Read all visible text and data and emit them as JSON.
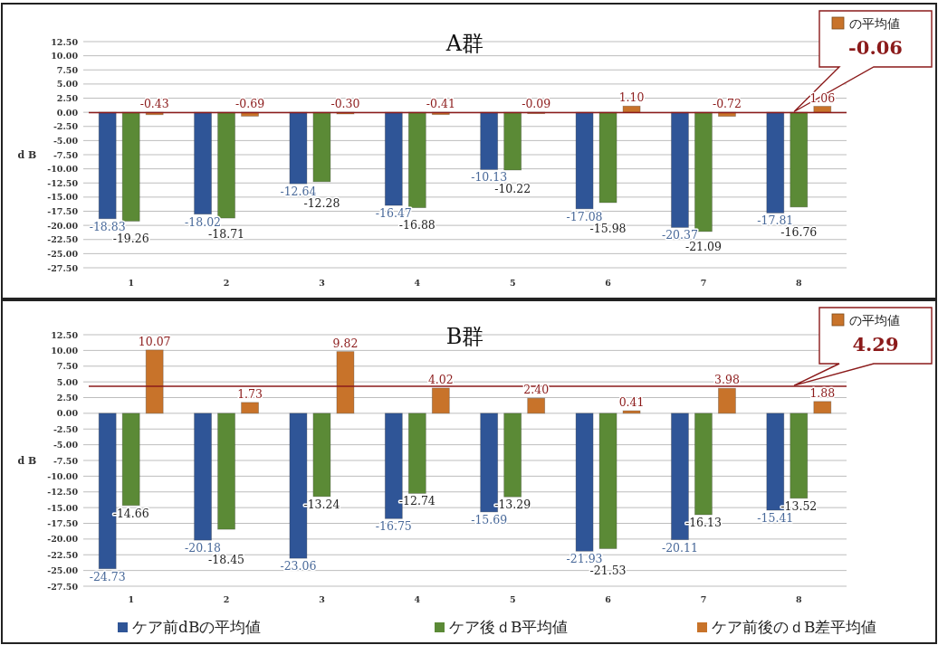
{
  "chart_data": [
    {
      "type": "bar",
      "title": "A群",
      "ylabel": "d B",
      "categories": [
        "1",
        "2",
        "3",
        "4",
        "5",
        "6",
        "7",
        "8"
      ],
      "series": [
        {
          "color": "#2f5597",
          "values": [
            -18.83,
            -18.02,
            -12.64,
            -16.47,
            -10.13,
            -17.08,
            -20.37,
            -17.81
          ],
          "value_labels": [
            "-18.83",
            "-18.02",
            "-12.64",
            "-16.47",
            "-10.13",
            "-17.08",
            "-20.37",
            "-17.81"
          ]
        },
        {
          "color": "#5b8a36",
          "values": [
            -19.26,
            -18.71,
            -12.28,
            -16.88,
            -10.22,
            -15.98,
            -21.09,
            -16.76
          ],
          "value_labels": [
            "-19.26",
            "-18.71",
            "-12.28",
            "-16.88",
            "-10.22",
            "-15.98",
            "-21.09",
            "-16.76"
          ]
        },
        {
          "color": "#c8732a",
          "values": [
            -0.43,
            -0.69,
            -0.3,
            -0.41,
            -0.09,
            1.1,
            -0.72,
            1.06
          ],
          "value_labels": [
            "-0.43",
            "-0.69",
            "-0.30",
            "-0.41",
            "-0.09",
            "1.10",
            "-0.72",
            "1.06"
          ]
        }
      ],
      "ylim": [
        -27.5,
        12.5
      ],
      "yticks": [
        {
          "value": 12.5,
          "label": "12.50"
        },
        {
          "value": 10,
          "label": "10.00"
        },
        {
          "value": 7.5,
          "label": "7.50"
        },
        {
          "value": 5,
          "label": "5.00"
        },
        {
          "value": 2.5,
          "label": "2.50"
        },
        {
          "value": 0,
          "label": "0.00"
        },
        {
          "value": -2.5,
          "label": "-2.50"
        },
        {
          "value": -5,
          "label": "-5.00"
        },
        {
          "value": -7.5,
          "label": "-7.50"
        },
        {
          "value": -10,
          "label": "-10.00"
        },
        {
          "value": -12.5,
          "label": "-12.50"
        },
        {
          "value": -15,
          "label": "-15.00"
        },
        {
          "value": -17.5,
          "label": "-17.50"
        },
        {
          "value": -20,
          "label": "-20.00"
        },
        {
          "value": -22.5,
          "label": "-22.50"
        },
        {
          "value": -25,
          "label": "-25.00"
        },
        {
          "value": -27.5,
          "label": "-27.50"
        }
      ],
      "grid": "y",
      "ref_lines": [
        {
          "axis": "y",
          "value": -0.06,
          "label": "-0.06",
          "color": "#8b1a1a"
        }
      ],
      "annotations": [
        "の平均値"
      ]
    },
    {
      "type": "bar",
      "title": "B群",
      "ylabel": "d B",
      "categories": [
        "1",
        "2",
        "3",
        "4",
        "5",
        "6",
        "7",
        "8"
      ],
      "series": [
        {
          "name": "ケア前dBの平均値",
          "color": "#2f5597",
          "values": [
            -24.73,
            -20.18,
            -23.06,
            -16.75,
            -15.69,
            -21.93,
            -20.11,
            -15.41
          ],
          "value_labels": [
            "-24.73",
            "-20.18",
            "-23.06",
            "-16.75",
            "-15.69",
            "-21.93",
            "-20.11",
            "-15.41"
          ]
        },
        {
          "name": "ケア後ｄB平均値",
          "color": "#5b8a36",
          "values": [
            -14.66,
            -18.45,
            -13.24,
            -12.74,
            -13.29,
            -21.53,
            -16.13,
            -13.52
          ],
          "value_labels": [
            "-14.66",
            "-18.45",
            "-13.24",
            "-12.74",
            "-13.29",
            "-21.53",
            "-16.13",
            "-13.52"
          ]
        },
        {
          "name": "ケア前後のｄB差平均値",
          "color": "#c8732a",
          "values": [
            10.07,
            1.73,
            9.82,
            4.02,
            2.4,
            0.41,
            3.98,
            1.88
          ],
          "value_labels": [
            "10.07",
            "1.73",
            "9.82",
            "4.02",
            "2.40",
            "0.41",
            "3.98",
            "1.88"
          ]
        }
      ],
      "ylim": [
        -27.5,
        12.5
      ],
      "yticks": [
        {
          "value": 12.5,
          "label": "12.50"
        },
        {
          "value": 10,
          "label": "10.00"
        },
        {
          "value": 7.5,
          "label": "7.50"
        },
        {
          "value": 5,
          "label": "5.00"
        },
        {
          "value": 2.5,
          "label": "2.50"
        },
        {
          "value": 0,
          "label": "0.00"
        },
        {
          "value": -2.5,
          "label": "-2.50"
        },
        {
          "value": -5,
          "label": "-5.00"
        },
        {
          "value": -7.5,
          "label": "-7.50"
        },
        {
          "value": -10,
          "label": "-10.00"
        },
        {
          "value": -12.5,
          "label": "-12.50"
        },
        {
          "value": -15,
          "label": "-15.00"
        },
        {
          "value": -17.5,
          "label": "-17.50"
        },
        {
          "value": -20,
          "label": "-20.00"
        },
        {
          "value": -22.5,
          "label": "-22.50"
        },
        {
          "value": -25,
          "label": "-25.00"
        },
        {
          "value": -27.5,
          "label": "-27.50"
        }
      ],
      "grid": "y",
      "legend": "bottom",
      "ref_lines": [
        {
          "axis": "y",
          "value": 4.29,
          "label": "4.29",
          "color": "#8b1a1a"
        }
      ],
      "annotations": [
        "の平均値"
      ]
    }
  ]
}
